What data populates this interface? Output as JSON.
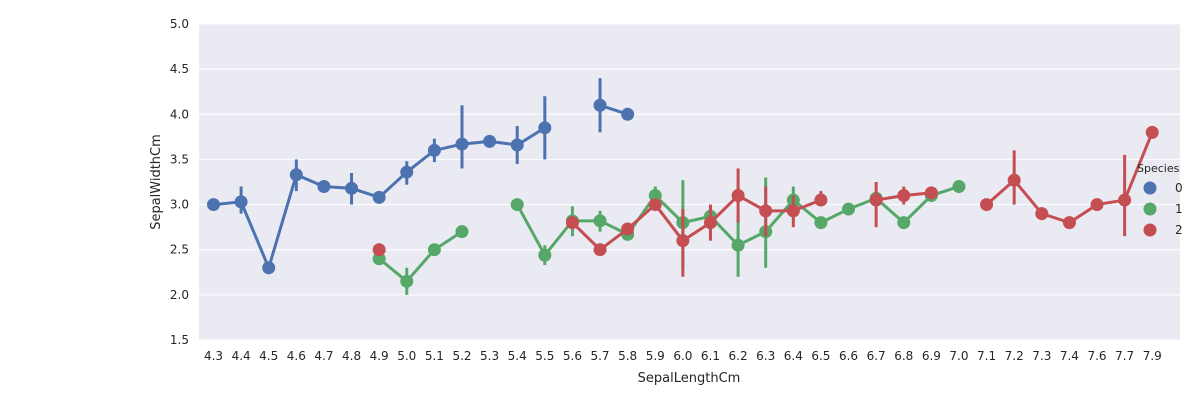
{
  "chart_data": {
    "type": "pointplot",
    "xlabel": "SepalLengthCm",
    "ylabel": "SepalWidthCm",
    "ylim": [
      1.5,
      5.0
    ],
    "yticks": [
      "1.5",
      "2.0",
      "2.5",
      "3.0",
      "3.5",
      "4.0",
      "4.5",
      "5.0"
    ],
    "grid": true,
    "legend_title": "Species",
    "legend_position": "right",
    "categories": [
      "4.3",
      "4.4",
      "4.5",
      "4.6",
      "4.7",
      "4.8",
      "4.9",
      "5.0",
      "5.1",
      "5.2",
      "5.3",
      "5.4",
      "5.5",
      "5.6",
      "5.7",
      "5.8",
      "5.9",
      "6.0",
      "6.1",
      "6.2",
      "6.3",
      "6.4",
      "6.5",
      "6.6",
      "6.7",
      "6.8",
      "6.9",
      "7.0",
      "7.1",
      "7.2",
      "7.3",
      "7.4",
      "7.6",
      "7.7",
      "7.9"
    ],
    "series": [
      {
        "name": "0",
        "color": "#4c72b0",
        "points": [
          {
            "x": "4.3",
            "y": 3.0,
            "lo": 3.0,
            "hi": 3.0
          },
          {
            "x": "4.4",
            "y": 3.03,
            "lo": 2.9,
            "hi": 3.2
          },
          {
            "x": "4.5",
            "y": 2.3,
            "lo": 2.3,
            "hi": 2.3
          },
          {
            "x": "4.6",
            "y": 3.33,
            "lo": 3.15,
            "hi": 3.5
          },
          {
            "x": "4.7",
            "y": 3.2,
            "lo": 3.2,
            "hi": 3.2
          },
          {
            "x": "4.8",
            "y": 3.18,
            "lo": 3.0,
            "hi": 3.35
          },
          {
            "x": "4.9",
            "y": 3.08,
            "lo": 3.08,
            "hi": 3.08
          },
          {
            "x": "5.0",
            "y": 3.36,
            "lo": 3.22,
            "hi": 3.48
          },
          {
            "x": "5.1",
            "y": 3.6,
            "lo": 3.47,
            "hi": 3.73
          },
          {
            "x": "5.2",
            "y": 3.67,
            "lo": 3.4,
            "hi": 4.1
          },
          {
            "x": "5.3",
            "y": 3.7,
            "lo": 3.7,
            "hi": 3.7
          },
          {
            "x": "5.4",
            "y": 3.66,
            "lo": 3.45,
            "hi": 3.87
          },
          {
            "x": "5.5",
            "y": 3.85,
            "lo": 3.5,
            "hi": 4.2
          },
          {
            "x": "5.7",
            "y": 4.1,
            "lo": 3.8,
            "hi": 4.4
          },
          {
            "x": "5.8",
            "y": 4.0,
            "lo": 4.0,
            "hi": 4.0
          }
        ]
      },
      {
        "name": "1",
        "color": "#55a868",
        "points": [
          {
            "x": "4.9",
            "y": 2.4,
            "lo": 2.4,
            "hi": 2.4
          },
          {
            "x": "5.0",
            "y": 2.15,
            "lo": 2.0,
            "hi": 2.3
          },
          {
            "x": "5.1",
            "y": 2.5,
            "lo": 2.5,
            "hi": 2.5
          },
          {
            "x": "5.2",
            "y": 2.7,
            "lo": 2.7,
            "hi": 2.7
          },
          {
            "x": "5.4",
            "y": 3.0,
            "lo": 3.0,
            "hi": 3.0
          },
          {
            "x": "5.5",
            "y": 2.44,
            "lo": 2.33,
            "hi": 2.55
          },
          {
            "x": "5.6",
            "y": 2.82,
            "lo": 2.65,
            "hi": 2.98
          },
          {
            "x": "5.7",
            "y": 2.82,
            "lo": 2.7,
            "hi": 2.93
          },
          {
            "x": "5.8",
            "y": 2.67,
            "lo": 2.63,
            "hi": 2.7
          },
          {
            "x": "5.9",
            "y": 3.1,
            "lo": 3.0,
            "hi": 3.2
          },
          {
            "x": "6.0",
            "y": 2.8,
            "lo": 2.3,
            "hi": 3.27
          },
          {
            "x": "6.1",
            "y": 2.87,
            "lo": 2.78,
            "hi": 2.98
          },
          {
            "x": "6.2",
            "y": 2.55,
            "lo": 2.2,
            "hi": 2.9
          },
          {
            "x": "6.3",
            "y": 2.7,
            "lo": 2.3,
            "hi": 3.3
          },
          {
            "x": "6.4",
            "y": 3.05,
            "lo": 2.9,
            "hi": 3.2
          },
          {
            "x": "6.5",
            "y": 2.8,
            "lo": 2.8,
            "hi": 2.8
          },
          {
            "x": "6.6",
            "y": 2.95,
            "lo": 2.95,
            "hi": 2.95
          },
          {
            "x": "6.7",
            "y": 3.07,
            "lo": 3.0,
            "hi": 3.15
          },
          {
            "x": "6.8",
            "y": 2.8,
            "lo": 2.8,
            "hi": 2.8
          },
          {
            "x": "6.9",
            "y": 3.1,
            "lo": 3.1,
            "hi": 3.1
          },
          {
            "x": "7.0",
            "y": 3.2,
            "lo": 3.2,
            "hi": 3.2
          }
        ]
      },
      {
        "name": "2",
        "color": "#c44e52",
        "points": [
          {
            "x": "4.9",
            "y": 2.5,
            "lo": 2.5,
            "hi": 2.5
          },
          {
            "x": "5.6",
            "y": 2.8,
            "lo": 2.8,
            "hi": 2.8
          },
          {
            "x": "5.7",
            "y": 2.5,
            "lo": 2.5,
            "hi": 2.5
          },
          {
            "x": "5.8",
            "y": 2.73,
            "lo": 2.7,
            "hi": 2.77
          },
          {
            "x": "5.9",
            "y": 3.0,
            "lo": 3.0,
            "hi": 3.0
          },
          {
            "x": "6.0",
            "y": 2.6,
            "lo": 2.2,
            "hi": 2.95
          },
          {
            "x": "6.1",
            "y": 2.8,
            "lo": 2.6,
            "hi": 3.0
          },
          {
            "x": "6.2",
            "y": 3.1,
            "lo": 2.8,
            "hi": 3.4
          },
          {
            "x": "6.3",
            "y": 2.93,
            "lo": 2.65,
            "hi": 3.2
          },
          {
            "x": "6.4",
            "y": 2.93,
            "lo": 2.75,
            "hi": 3.1
          },
          {
            "x": "6.5",
            "y": 3.05,
            "lo": 3.0,
            "hi": 3.15
          },
          {
            "x": "6.7",
            "y": 3.05,
            "lo": 2.75,
            "hi": 3.25
          },
          {
            "x": "6.8",
            "y": 3.1,
            "lo": 3.0,
            "hi": 3.2
          },
          {
            "x": "6.9",
            "y": 3.13,
            "lo": 3.1,
            "hi": 3.17
          },
          {
            "x": "7.1",
            "y": 3.0,
            "lo": 3.0,
            "hi": 3.0
          },
          {
            "x": "7.2",
            "y": 3.27,
            "lo": 3.0,
            "hi": 3.6
          },
          {
            "x": "7.3",
            "y": 2.9,
            "lo": 2.9,
            "hi": 2.9
          },
          {
            "x": "7.4",
            "y": 2.8,
            "lo": 2.8,
            "hi": 2.8
          },
          {
            "x": "7.6",
            "y": 3.0,
            "lo": 3.0,
            "hi": 3.0
          },
          {
            "x": "7.7",
            "y": 3.05,
            "lo": 2.65,
            "hi": 3.55
          },
          {
            "x": "7.9",
            "y": 3.8,
            "lo": 3.8,
            "hi": 3.8
          }
        ]
      }
    ]
  }
}
